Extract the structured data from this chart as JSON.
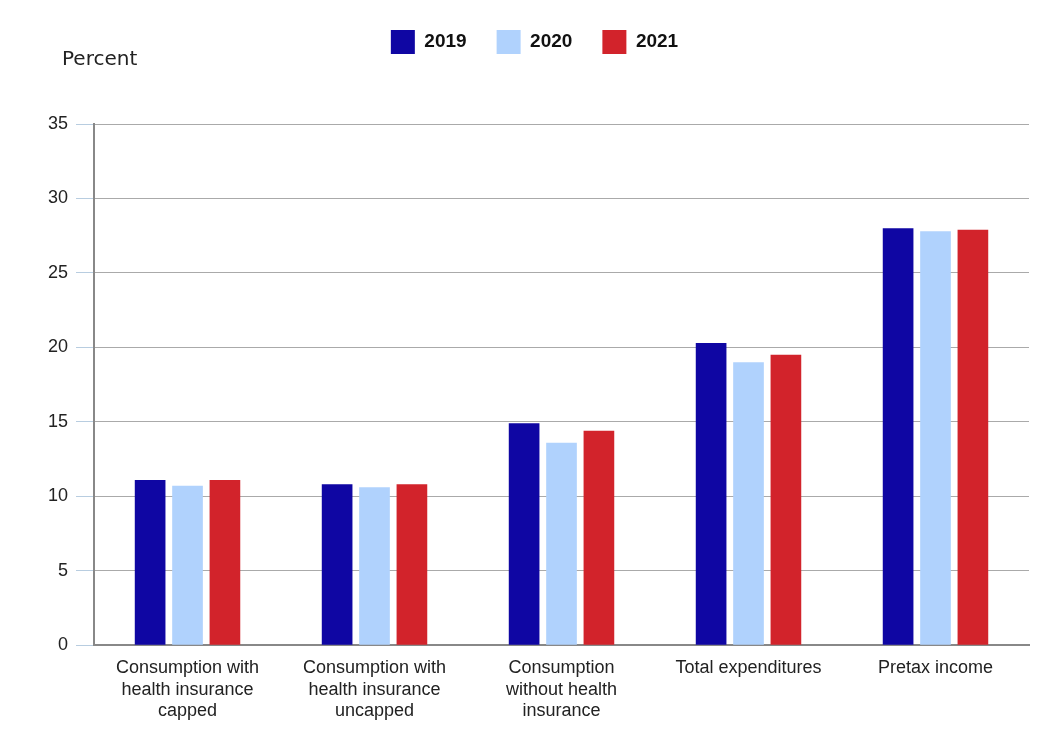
{
  "chart_data": {
    "type": "bar",
    "ylabel": "Percent",
    "categories": [
      "Consumption with health insurance capped",
      "Consumption with health insurance uncapped",
      "Consumption without health insurance",
      "Total expenditures",
      "Pretax income"
    ],
    "series": [
      {
        "name": "2019",
        "color": "#0f06a3",
        "values": [
          11.1,
          10.8,
          14.9,
          20.3,
          28.0
        ]
      },
      {
        "name": "2020",
        "color": "#b0d2fd",
        "values": [
          10.7,
          10.6,
          13.6,
          19.0,
          27.8
        ]
      },
      {
        "name": "2021",
        "color": "#d2232b",
        "values": [
          11.1,
          10.8,
          14.4,
          19.5,
          27.9
        ]
      }
    ],
    "ylim": [
      0,
      35
    ],
    "yticks": [
      0,
      5,
      10,
      15,
      20,
      25,
      30,
      35
    ],
    "grid": "y",
    "legend": "top"
  }
}
